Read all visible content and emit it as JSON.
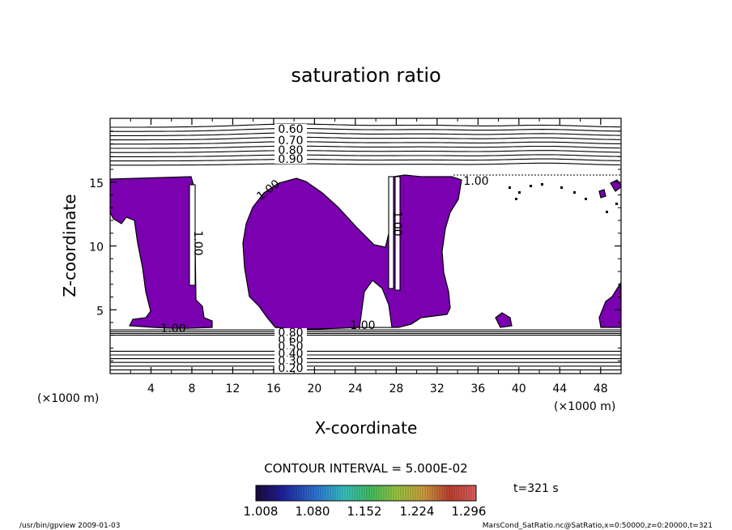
{
  "chart_data": {
    "type": "contour",
    "title": "saturation ratio",
    "xlabel": "X-coordinate",
    "ylabel": "Z-coordinate",
    "x_unit": "(×1000 m)",
    "y_unit": "(×1000 m)",
    "xlim": [
      0,
      50
    ],
    "ylim": [
      0,
      20
    ],
    "x_ticks": [
      "4",
      "8",
      "12",
      "16",
      "20",
      "24",
      "28",
      "32",
      "36",
      "40",
      "44",
      "48"
    ],
    "y_ticks": [
      "5",
      "10",
      "15"
    ],
    "contour_interval_text": "CONTOUR INTERVAL = 5.000E-02",
    "upper_contour_labels": [
      "0.60",
      "0.70",
      "0.80",
      "0.90"
    ],
    "lower_contour_labels": [
      "0.80",
      "0.60",
      "0.50",
      "0.40",
      "0.30",
      "0.20"
    ],
    "saturation_labels": [
      "1.00",
      "1.00",
      "1.00",
      "1.00",
      "1.00",
      "1.00"
    ],
    "colorbar": {
      "ticks": [
        "1.008",
        "1.080",
        "1.152",
        "1.224",
        "1.296"
      ],
      "colors": [
        "#1a0a3a",
        "#2020a0",
        "#2e7bd8",
        "#38c4c4",
        "#44c060",
        "#9ac840",
        "#d0a040",
        "#c04030",
        "#e06060"
      ]
    },
    "fill_color": "#7a00b0",
    "time_label": "t=321 s",
    "footer_left": "/usr/bin/gpview   2009-01-03",
    "footer_right": "MarsCond_SatRatio.nc@SatRatio,x=0:50000,z=0:20000,t=321"
  }
}
